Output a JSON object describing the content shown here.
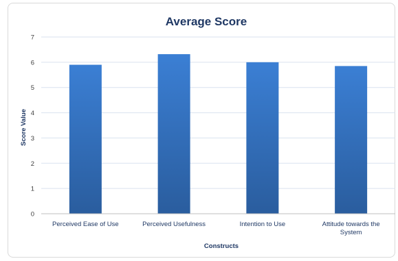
{
  "chart_data": {
    "type": "bar",
    "title": "Average Score",
    "xlabel": "Constructs",
    "ylabel": "Score Value",
    "categories": [
      [
        "Perceived Ease of Use"
      ],
      [
        "Perceived Usefulness"
      ],
      [
        "Intention to Use"
      ],
      [
        "Attitude towards the",
        "System"
      ]
    ],
    "values": [
      5.9,
      6.32,
      6.0,
      5.85
    ],
    "ylim": [
      0,
      7
    ],
    "yticks": [
      "0",
      "1",
      "2",
      "3",
      "4",
      "5",
      "6",
      "7"
    ],
    "grid": true,
    "legend": "none",
    "colors": {
      "bar_top": "#3b7fd4",
      "bar_bottom": "#2a5d9e",
      "grid": "#d9e2ef",
      "axis": "#bfbfbf"
    }
  }
}
